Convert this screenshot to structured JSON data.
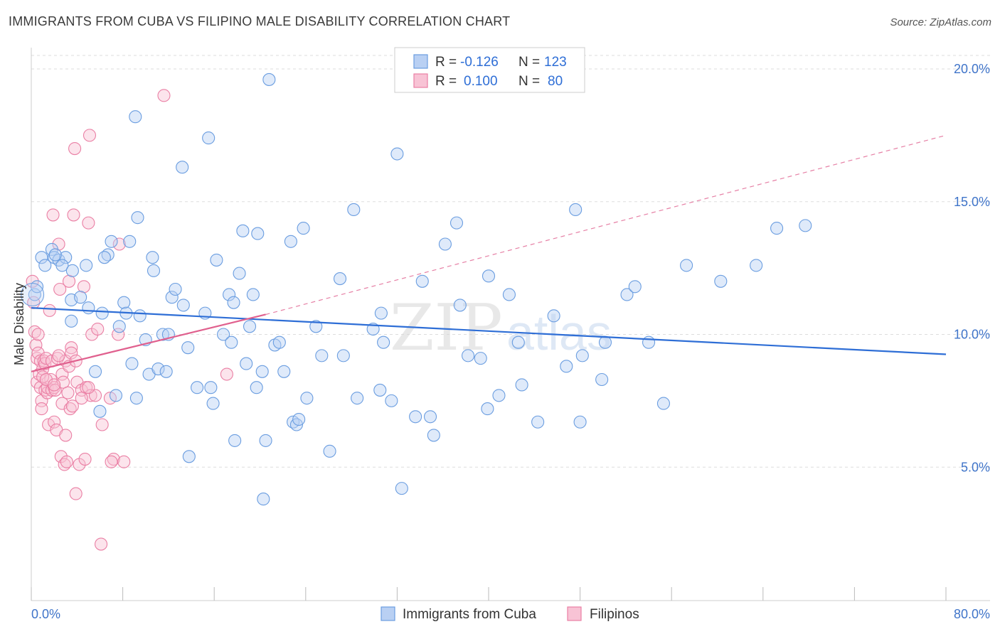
{
  "title": "IMMIGRANTS FROM CUBA VS FILIPINO MALE DISABILITY CORRELATION CHART",
  "source": "Source: ZipAtlas.com",
  "watermark": {
    "zip": "ZIP",
    "atlas": "atlas"
  },
  "colors": {
    "blue": "#6a9de0",
    "blue_fill": "#b9d0f3",
    "blue_line": "#2e6ed6",
    "pink": "#ea7fa4",
    "pink_fill": "#f8c3d5",
    "pink_line": "#e0608e",
    "grid": "#dddddd",
    "tick": "#3f74c9"
  },
  "legend": {
    "rows": [
      {
        "r_label": "R =",
        "r_value": "-0.126",
        "n_label": "N =",
        "n_value": "123"
      },
      {
        "r_label": "R =",
        "r_value": "0.100",
        "n_label": "N =",
        "n_value": "80"
      }
    ]
  },
  "bottom_legend": {
    "series1": "Immigrants from Cuba",
    "series2": "Filipinos"
  },
  "chart_data": {
    "type": "scatter",
    "title": "IMMIGRANTS FROM CUBA VS FILIPINO MALE DISABILITY CORRELATION CHART",
    "xlabel": "",
    "ylabel": "Male Disability",
    "xlim": [
      0,
      80
    ],
    "ylim": [
      0,
      21
    ],
    "x_tick_labels": [
      "0.0%",
      "80.0%"
    ],
    "y_ticks": [
      5,
      10,
      15,
      20
    ],
    "y_tick_labels": [
      "5.0%",
      "10.0%",
      "15.0%",
      "20.0%"
    ],
    "grid": true,
    "legend_position": "top-center",
    "series": [
      {
        "name": "Immigrants from Cuba",
        "color": "#6a9de0",
        "trend": {
          "x": [
            0,
            80
          ],
          "y": [
            11.0,
            9.25
          ]
        },
        "points": [
          [
            0.3,
            11.5
          ],
          [
            0.5,
            11.8
          ],
          [
            0.9,
            12.9
          ],
          [
            1.2,
            12.6
          ],
          [
            1.8,
            13.2
          ],
          [
            2.0,
            12.9
          ],
          [
            2.4,
            12.8
          ],
          [
            3.0,
            12.9
          ],
          [
            2.7,
            12.6
          ],
          [
            3.5,
            10.5
          ],
          [
            3.6,
            12.4
          ],
          [
            3.5,
            11.3
          ],
          [
            4.3,
            11.4
          ],
          [
            4.8,
            12.6
          ],
          [
            5.0,
            11.0
          ],
          [
            5.6,
            8.6
          ],
          [
            6.2,
            10.8
          ],
          [
            6.0,
            7.1
          ],
          [
            6.7,
            13.0
          ],
          [
            7.0,
            13.5
          ],
          [
            7.4,
            7.7
          ],
          [
            7.7,
            10.3
          ],
          [
            8.1,
            11.2
          ],
          [
            8.3,
            10.8
          ],
          [
            8.6,
            13.5
          ],
          [
            8.8,
            8.9
          ],
          [
            9.1,
            18.2
          ],
          [
            9.3,
            14.4
          ],
          [
            9.5,
            10.7
          ],
          [
            10.0,
            9.8
          ],
          [
            10.3,
            8.5
          ],
          [
            10.6,
            12.9
          ],
          [
            10.7,
            12.4
          ],
          [
            11.1,
            8.7
          ],
          [
            11.5,
            10.0
          ],
          [
            11.8,
            8.6
          ],
          [
            12.0,
            10.0
          ],
          [
            12.3,
            11.4
          ],
          [
            12.6,
            11.7
          ],
          [
            13.2,
            16.3
          ],
          [
            13.3,
            11.1
          ],
          [
            13.7,
            9.5
          ],
          [
            13.8,
            5.4
          ],
          [
            14.5,
            8.0
          ],
          [
            15.2,
            10.8
          ],
          [
            15.5,
            17.4
          ],
          [
            15.7,
            8.0
          ],
          [
            15.9,
            7.4
          ],
          [
            16.2,
            12.8
          ],
          [
            16.8,
            10.0
          ],
          [
            17.3,
            11.5
          ],
          [
            17.5,
            9.7
          ],
          [
            17.7,
            11.2
          ],
          [
            17.8,
            6.0
          ],
          [
            18.2,
            12.3
          ],
          [
            18.5,
            13.9
          ],
          [
            18.8,
            8.9
          ],
          [
            19.1,
            10.3
          ],
          [
            19.4,
            11.5
          ],
          [
            19.7,
            8.0
          ],
          [
            19.8,
            13.8
          ],
          [
            20.2,
            8.6
          ],
          [
            20.5,
            6.0
          ],
          [
            20.8,
            19.6
          ],
          [
            21.3,
            9.6
          ],
          [
            21.7,
            9.7
          ],
          [
            22.1,
            8.6
          ],
          [
            22.7,
            13.5
          ],
          [
            22.9,
            6.7
          ],
          [
            23.2,
            6.6
          ],
          [
            23.4,
            6.8
          ],
          [
            23.8,
            14.0
          ],
          [
            24.1,
            7.6
          ],
          [
            24.9,
            10.3
          ],
          [
            25.4,
            9.2
          ],
          [
            26.1,
            5.6
          ],
          [
            27.0,
            12.1
          ],
          [
            27.3,
            9.2
          ],
          [
            28.2,
            14.7
          ],
          [
            28.5,
            7.6
          ],
          [
            29.9,
            10.2
          ],
          [
            30.5,
            7.9
          ],
          [
            30.6,
            10.8
          ],
          [
            30.8,
            9.7
          ],
          [
            31.5,
            7.5
          ],
          [
            32.0,
            16.8
          ],
          [
            32.4,
            4.2
          ],
          [
            33.6,
            6.9
          ],
          [
            34.2,
            12.0
          ],
          [
            34.9,
            6.9
          ],
          [
            35.2,
            6.2
          ],
          [
            36.2,
            13.4
          ],
          [
            37.2,
            14.2
          ],
          [
            37.5,
            11.1
          ],
          [
            38.2,
            9.2
          ],
          [
            39.3,
            9.1
          ],
          [
            39.9,
            7.2
          ],
          [
            40.0,
            12.2
          ],
          [
            40.9,
            7.7
          ],
          [
            41.8,
            11.5
          ],
          [
            42.6,
            9.7
          ],
          [
            42.9,
            8.1
          ],
          [
            44.3,
            6.7
          ],
          [
            45.7,
            10.7
          ],
          [
            46.8,
            8.8
          ],
          [
            47.6,
            14.7
          ],
          [
            48.0,
            6.7
          ],
          [
            48.2,
            9.2
          ],
          [
            49.9,
            8.3
          ],
          [
            50.2,
            9.7
          ],
          [
            52.1,
            11.5
          ],
          [
            52.8,
            11.8
          ],
          [
            54.0,
            9.7
          ],
          [
            55.3,
            7.4
          ],
          [
            57.3,
            12.6
          ],
          [
            60.3,
            12.0
          ],
          [
            63.4,
            12.6
          ],
          [
            65.2,
            14.0
          ],
          [
            67.7,
            14.1
          ],
          [
            20.3,
            3.8
          ],
          [
            2.1,
            13.0
          ],
          [
            6.4,
            12.9
          ],
          [
            9.2,
            7.6
          ]
        ]
      },
      {
        "name": "Filipinos",
        "color": "#ea7fa4",
        "trend": {
          "x": [
            0,
            20.5
          ],
          "y": [
            8.6,
            10.75
          ]
        },
        "trend_dashed": {
          "x": [
            20.5,
            80
          ],
          "y": [
            10.75,
            17.5
          ]
        },
        "points": [
          [
            0.1,
            12.0
          ],
          [
            0.2,
            11.2
          ],
          [
            0.3,
            10.1
          ],
          [
            0.4,
            9.6
          ],
          [
            0.5,
            9.1
          ],
          [
            0.5,
            8.2
          ],
          [
            0.6,
            9.3
          ],
          [
            0.7,
            8.5
          ],
          [
            0.8,
            9.0
          ],
          [
            0.8,
            8.0
          ],
          [
            0.9,
            7.5
          ],
          [
            0.9,
            7.2
          ],
          [
            1.0,
            8.7
          ],
          [
            1.1,
            9.0
          ],
          [
            1.2,
            7.9
          ],
          [
            1.2,
            8.9
          ],
          [
            1.3,
            9.1
          ],
          [
            1.4,
            7.8
          ],
          [
            1.4,
            8.0
          ],
          [
            1.5,
            6.6
          ],
          [
            1.6,
            10.9
          ],
          [
            1.7,
            8.3
          ],
          [
            1.8,
            9.0
          ],
          [
            1.8,
            7.9
          ],
          [
            1.9,
            14.5
          ],
          [
            2.0,
            6.7
          ],
          [
            2.0,
            8.0
          ],
          [
            2.1,
            7.9
          ],
          [
            2.2,
            6.4
          ],
          [
            2.3,
            9.1
          ],
          [
            2.4,
            13.4
          ],
          [
            2.5,
            11.7
          ],
          [
            2.6,
            5.4
          ],
          [
            2.7,
            8.5
          ],
          [
            2.7,
            7.4
          ],
          [
            2.8,
            8.2
          ],
          [
            2.9,
            5.1
          ],
          [
            3.0,
            6.2
          ],
          [
            3.0,
            9.0
          ],
          [
            3.1,
            5.2
          ],
          [
            3.2,
            7.8
          ],
          [
            3.3,
            8.8
          ],
          [
            3.3,
            12.0
          ],
          [
            3.4,
            7.2
          ],
          [
            3.5,
            9.5
          ],
          [
            3.5,
            9.3
          ],
          [
            3.6,
            7.3
          ],
          [
            3.7,
            14.5
          ],
          [
            3.8,
            17.0
          ],
          [
            3.9,
            4.0
          ],
          [
            4.0,
            8.2
          ],
          [
            4.2,
            5.1
          ],
          [
            4.4,
            7.9
          ],
          [
            4.6,
            11.8
          ],
          [
            4.7,
            5.3
          ],
          [
            4.8,
            8.0
          ],
          [
            5.0,
            14.2
          ],
          [
            5.1,
            17.5
          ],
          [
            5.2,
            7.7
          ],
          [
            5.3,
            10.0
          ],
          [
            5.6,
            7.7
          ],
          [
            5.8,
            10.2
          ],
          [
            6.1,
            2.1
          ],
          [
            6.2,
            6.6
          ],
          [
            6.9,
            7.6
          ],
          [
            7.2,
            5.3
          ],
          [
            7.6,
            10.0
          ],
          [
            7.7,
            13.4
          ],
          [
            8.1,
            5.2
          ],
          [
            11.6,
            19.0
          ],
          [
            17.1,
            8.5
          ],
          [
            1.0,
            8.4
          ],
          [
            1.3,
            8.3
          ],
          [
            0.6,
            10.0
          ],
          [
            2.0,
            8.1
          ],
          [
            2.4,
            9.2
          ],
          [
            3.9,
            9.0
          ],
          [
            4.4,
            7.6
          ],
          [
            5.0,
            8.0
          ],
          [
            7.0,
            5.2
          ]
        ]
      }
    ]
  }
}
